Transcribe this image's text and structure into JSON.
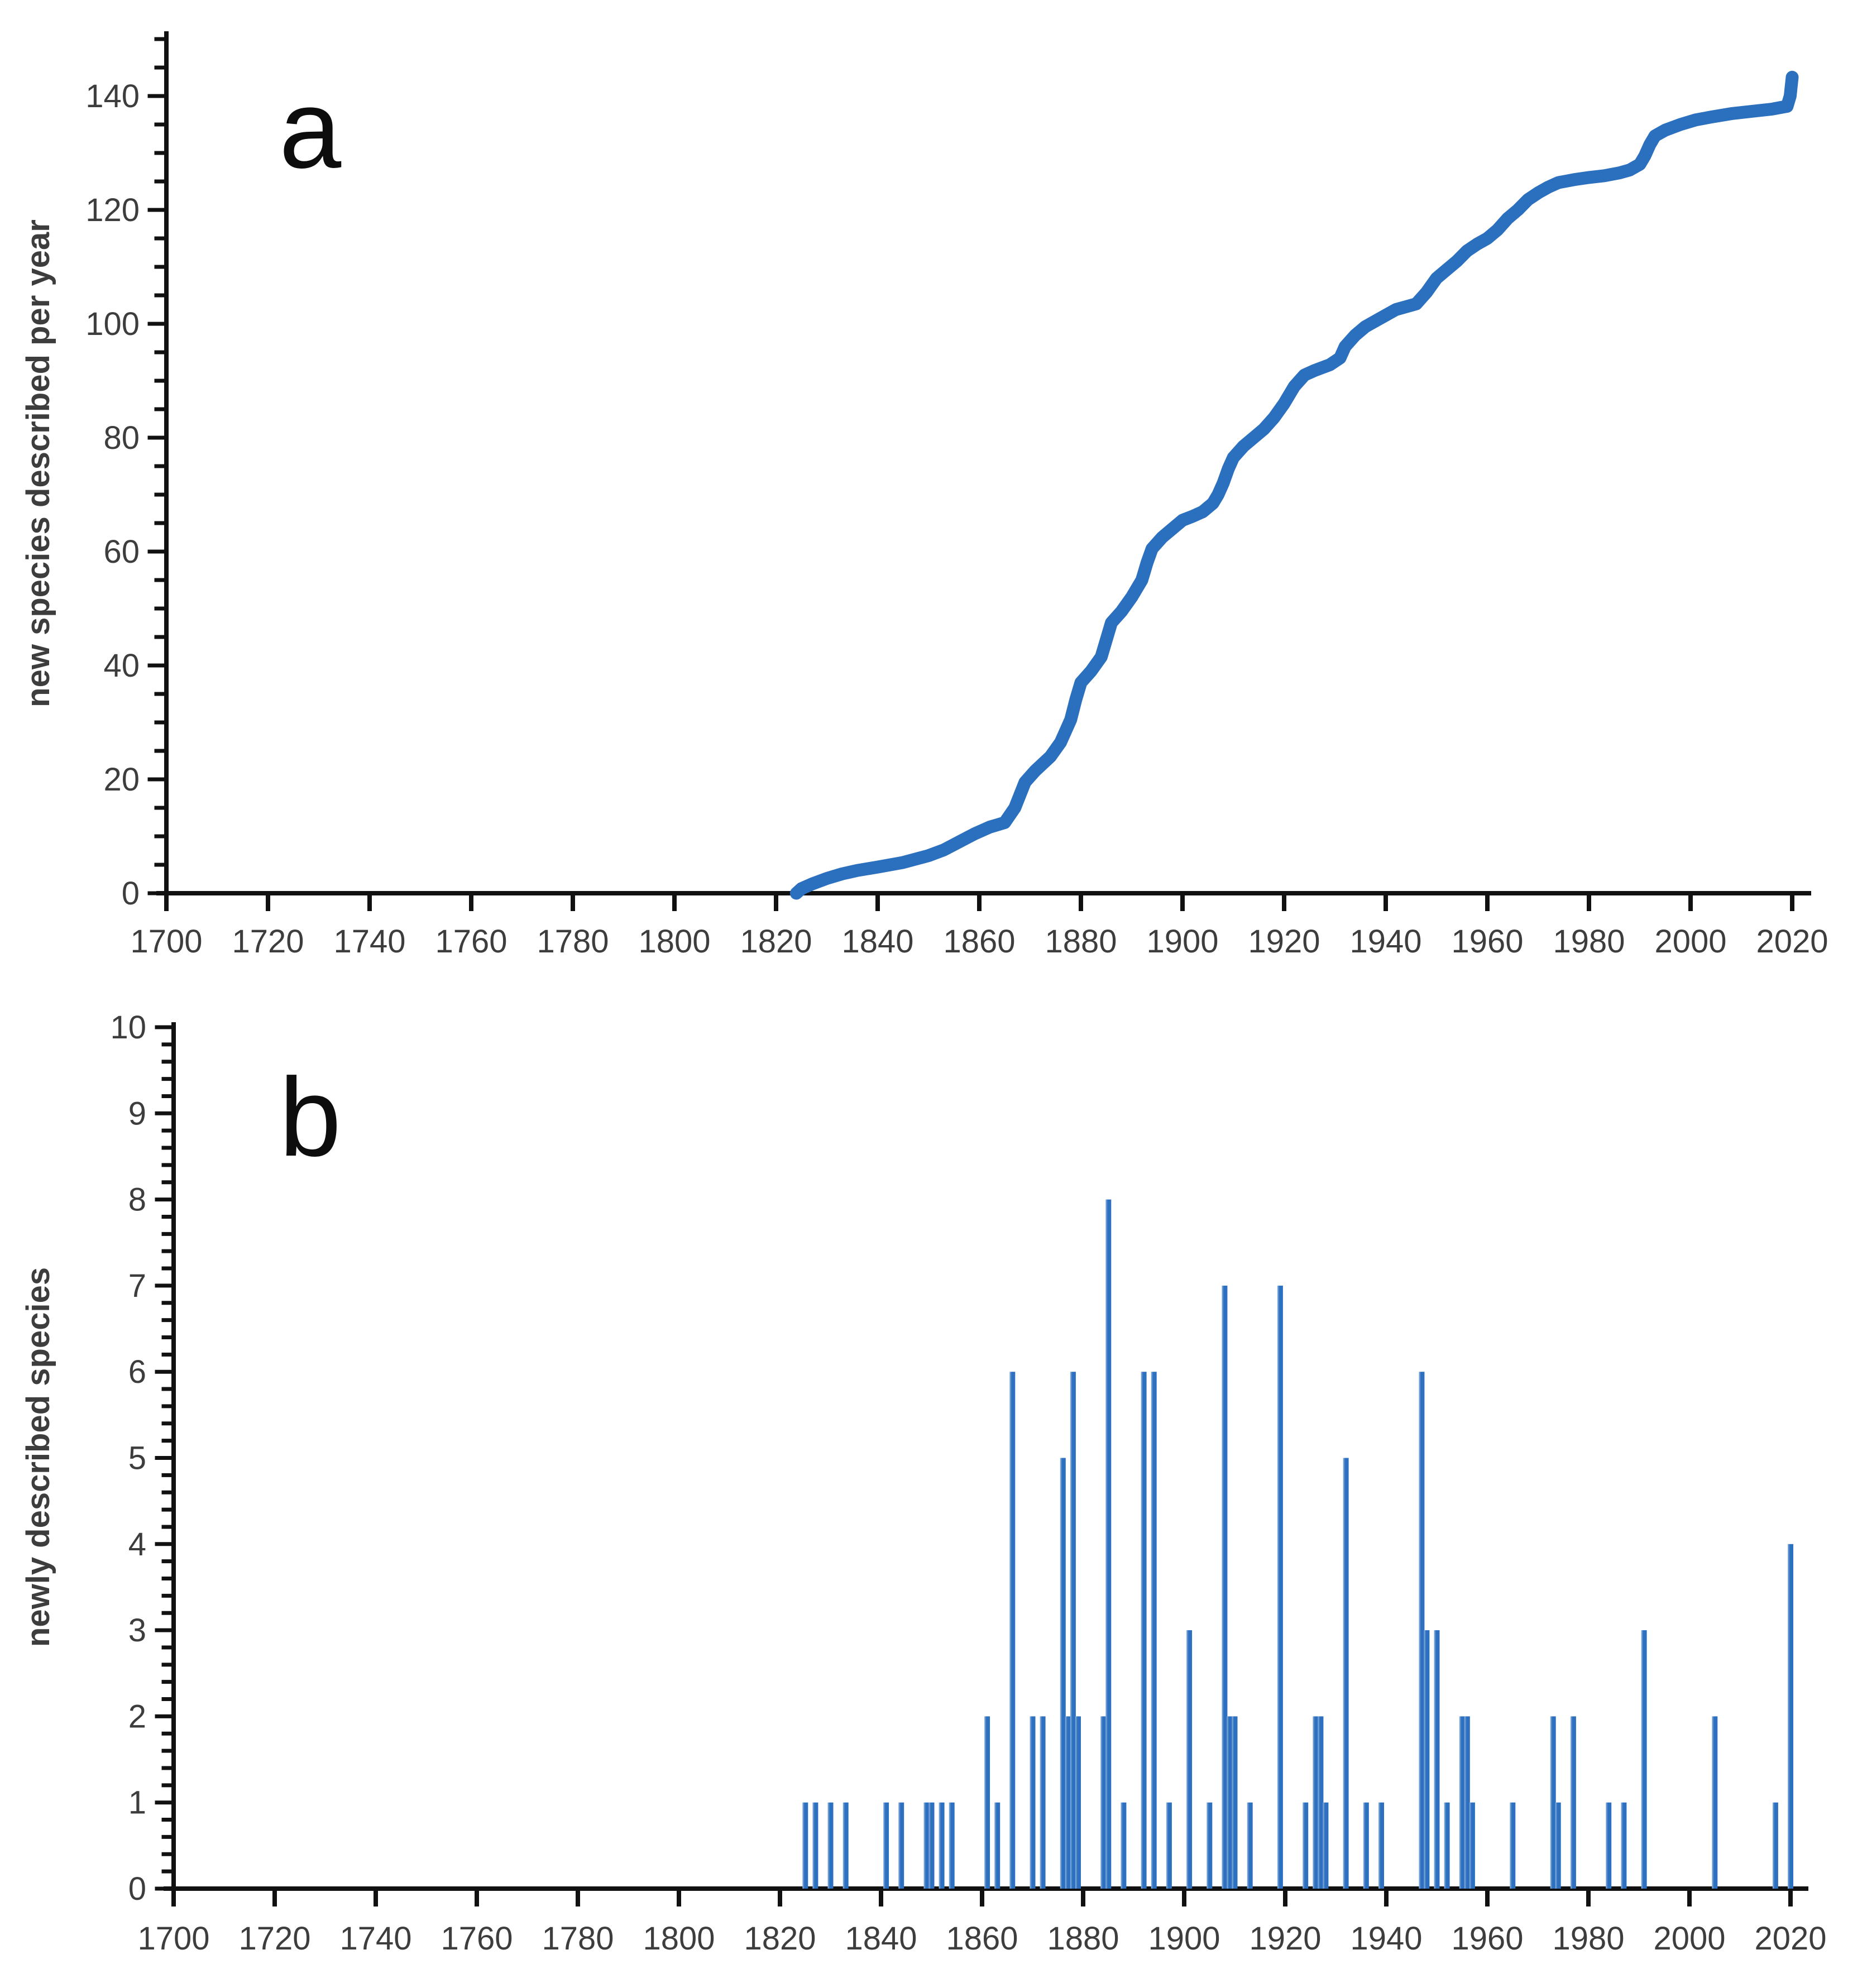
{
  "colors": {
    "series_blue": "#2b6fbf",
    "bar_blue": "#2d70c0",
    "bar_edge_light": "#8fb3dc",
    "axis": "#111111",
    "tick_label": "#3d3d3d",
    "panel_letter": "#0d0d0d",
    "background": "#ffffff"
  },
  "chart_data": [
    {
      "id": "a",
      "type": "line",
      "panel_label": "a",
      "title": "",
      "xlabel": "",
      "ylabel": "new species described per year",
      "xlim": [
        1700,
        2023
      ],
      "ylim": [
        0,
        150
      ],
      "grid": "off",
      "legend": "none",
      "x_ticks": [
        1700,
        1720,
        1740,
        1760,
        1780,
        1800,
        1820,
        1840,
        1860,
        1880,
        1900,
        1920,
        1940,
        1960,
        1980,
        2000,
        2020
      ],
      "y_ticks": [
        0,
        20,
        40,
        60,
        80,
        100,
        120,
        140
      ],
      "y_minor_step": 5,
      "line_color": "#2b6fbf",
      "points": [
        [
          1824,
          0
        ],
        [
          1825,
          0.8
        ],
        [
          1827,
          1.6
        ],
        [
          1830,
          2.6
        ],
        [
          1833,
          3.4
        ],
        [
          1836,
          4
        ],
        [
          1840,
          4.6
        ],
        [
          1845,
          5.4
        ],
        [
          1850,
          6.6
        ],
        [
          1853,
          7.6
        ],
        [
          1856,
          9
        ],
        [
          1859,
          10.4
        ],
        [
          1862,
          11.6
        ],
        [
          1865,
          12.4
        ],
        [
          1867,
          15
        ],
        [
          1869,
          19.5
        ],
        [
          1871,
          21.5
        ],
        [
          1874,
          24
        ],
        [
          1876,
          26.5
        ],
        [
          1877,
          28.5
        ],
        [
          1878,
          30.5
        ],
        [
          1879,
          34
        ],
        [
          1880,
          37
        ],
        [
          1882,
          39
        ],
        [
          1884,
          41.5
        ],
        [
          1885,
          44.5
        ],
        [
          1886,
          47.5
        ],
        [
          1888,
          49.5
        ],
        [
          1890,
          52
        ],
        [
          1892,
          55
        ],
        [
          1893,
          58
        ],
        [
          1894,
          60.5
        ],
        [
          1896,
          62.5
        ],
        [
          1898,
          64
        ],
        [
          1900,
          65.5
        ],
        [
          1902,
          66.2
        ],
        [
          1904,
          67
        ],
        [
          1906,
          68.5
        ],
        [
          1907,
          70
        ],
        [
          1908,
          72
        ],
        [
          1909,
          74.5
        ],
        [
          1910,
          76.5
        ],
        [
          1912,
          78.5
        ],
        [
          1914,
          80
        ],
        [
          1916,
          81.5
        ],
        [
          1918,
          83.5
        ],
        [
          1920,
          86
        ],
        [
          1922,
          89
        ],
        [
          1924,
          91
        ],
        [
          1926,
          91.8
        ],
        [
          1929,
          92.8
        ],
        [
          1931,
          94
        ],
        [
          1932,
          96
        ],
        [
          1934,
          98
        ],
        [
          1936,
          99.5
        ],
        [
          1938,
          100.5
        ],
        [
          1940,
          101.5
        ],
        [
          1942,
          102.5
        ],
        [
          1944,
          103
        ],
        [
          1946,
          103.5
        ],
        [
          1948,
          105.5
        ],
        [
          1950,
          108
        ],
        [
          1952,
          109.5
        ],
        [
          1954,
          111
        ],
        [
          1956,
          112.8
        ],
        [
          1958,
          114
        ],
        [
          1960,
          115
        ],
        [
          1962,
          116.5
        ],
        [
          1964,
          118.5
        ],
        [
          1966,
          120
        ],
        [
          1968,
          121.8
        ],
        [
          1970,
          123
        ],
        [
          1972,
          124
        ],
        [
          1974,
          124.8
        ],
        [
          1977,
          125.3
        ],
        [
          1980,
          125.7
        ],
        [
          1983,
          126
        ],
        [
          1986,
          126.5
        ],
        [
          1988,
          127
        ],
        [
          1990,
          128
        ],
        [
          1991,
          129.5
        ],
        [
          1992,
          131.5
        ],
        [
          1993,
          133
        ],
        [
          1995,
          134
        ],
        [
          1998,
          135
        ],
        [
          2001,
          135.8
        ],
        [
          2004,
          136.3
        ],
        [
          2008,
          136.9
        ],
        [
          2012,
          137.3
        ],
        [
          2016,
          137.7
        ],
        [
          2019,
          138.2
        ],
        [
          2019.6,
          140
        ],
        [
          2020,
          143.3
        ]
      ]
    },
    {
      "id": "b",
      "type": "bar",
      "panel_label": "b",
      "title": "",
      "xlabel": "",
      "ylabel": "newly described species",
      "xlim": [
        1700,
        2023
      ],
      "ylim": [
        0,
        10
      ],
      "grid": "off",
      "legend": "none",
      "x_ticks": [
        1700,
        1720,
        1740,
        1760,
        1780,
        1800,
        1820,
        1840,
        1860,
        1880,
        1900,
        1920,
        1940,
        1960,
        1980,
        2000,
        2020
      ],
      "y_ticks": [
        0,
        1,
        2,
        3,
        4,
        5,
        6,
        7,
        8,
        9,
        10
      ],
      "y_minor_step": 0.2,
      "bar_color": "#2d70c0",
      "categories_note": "year of description",
      "bars": [
        {
          "year": 1825,
          "count": 1
        },
        {
          "year": 1827,
          "count": 1
        },
        {
          "year": 1830,
          "count": 1
        },
        {
          "year": 1833,
          "count": 1
        },
        {
          "year": 1841,
          "count": 1
        },
        {
          "year": 1844,
          "count": 1
        },
        {
          "year": 1849,
          "count": 1
        },
        {
          "year": 1850,
          "count": 1
        },
        {
          "year": 1852,
          "count": 1
        },
        {
          "year": 1854,
          "count": 1
        },
        {
          "year": 1861,
          "count": 2
        },
        {
          "year": 1863,
          "count": 1
        },
        {
          "year": 1866,
          "count": 6
        },
        {
          "year": 1870,
          "count": 2
        },
        {
          "year": 1872,
          "count": 2
        },
        {
          "year": 1876,
          "count": 5
        },
        {
          "year": 1877,
          "count": 2
        },
        {
          "year": 1878,
          "count": 6
        },
        {
          "year": 1879,
          "count": 2
        },
        {
          "year": 1884,
          "count": 2
        },
        {
          "year": 1885,
          "count": 8
        },
        {
          "year": 1888,
          "count": 1
        },
        {
          "year": 1892,
          "count": 6
        },
        {
          "year": 1894,
          "count": 6
        },
        {
          "year": 1897,
          "count": 1
        },
        {
          "year": 1901,
          "count": 3
        },
        {
          "year": 1905,
          "count": 1
        },
        {
          "year": 1908,
          "count": 7
        },
        {
          "year": 1909,
          "count": 2
        },
        {
          "year": 1910,
          "count": 2
        },
        {
          "year": 1913,
          "count": 1
        },
        {
          "year": 1919,
          "count": 7
        },
        {
          "year": 1924,
          "count": 1
        },
        {
          "year": 1926,
          "count": 2
        },
        {
          "year": 1927,
          "count": 2
        },
        {
          "year": 1928,
          "count": 1
        },
        {
          "year": 1932,
          "count": 5
        },
        {
          "year": 1936,
          "count": 1
        },
        {
          "year": 1939,
          "count": 1
        },
        {
          "year": 1947,
          "count": 6
        },
        {
          "year": 1948,
          "count": 3
        },
        {
          "year": 1950,
          "count": 3
        },
        {
          "year": 1952,
          "count": 1
        },
        {
          "year": 1955,
          "count": 2
        },
        {
          "year": 1956,
          "count": 2
        },
        {
          "year": 1957,
          "count": 1
        },
        {
          "year": 1965,
          "count": 1
        },
        {
          "year": 1973,
          "count": 2
        },
        {
          "year": 1974,
          "count": 1
        },
        {
          "year": 1977,
          "count": 2
        },
        {
          "year": 1984,
          "count": 1
        },
        {
          "year": 1987,
          "count": 1
        },
        {
          "year": 1991,
          "count": 3
        },
        {
          "year": 2005,
          "count": 2
        },
        {
          "year": 2017,
          "count": 1
        },
        {
          "year": 2020,
          "count": 4
        }
      ]
    }
  ]
}
